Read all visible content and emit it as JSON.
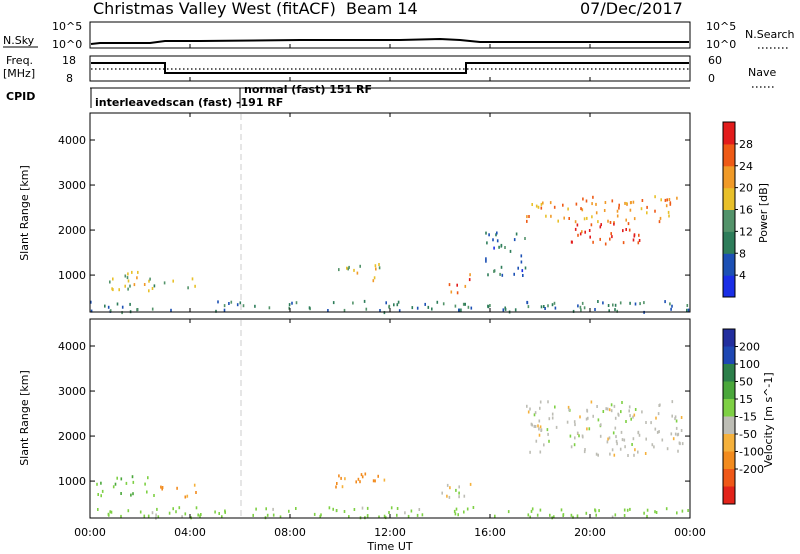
{
  "header": {
    "title": "Christmas Valley West (fitACF)",
    "beam": "Beam 14",
    "date": "07/Dec/2017"
  },
  "panels": {
    "nsky": {
      "label": "N.Sky",
      "left_ticks": [
        "10^5",
        "10^0"
      ],
      "right_label": "N.Search",
      "right_ticks": [
        "10^5",
        "10^0"
      ]
    },
    "freq": {
      "label_line1": "Freq.",
      "label_line2": "[MHz]",
      "left_ticks": [
        "18",
        "8"
      ],
      "right_label": "Nave",
      "right_ticks": [
        "60",
        "0"
      ]
    },
    "cpid": {
      "label": "CPID",
      "mode1": "interleavedscan (fast) -191 RF",
      "mode2": "normal (fast) 151 RF"
    }
  },
  "x_ticks": [
    "00:00",
    "04:00",
    "08:00",
    "12:00",
    "16:00",
    "20:00",
    "00:00"
  ],
  "x_label": "Time UT",
  "colors": {
    "power": [
      "#1a2ee6",
      "#1c50b4",
      "#2e7d5a",
      "#53936a",
      "#e8c02a",
      "#f09a28",
      "#ee5a16",
      "#e21c1c"
    ],
    "velocity": [
      "#e2231a",
      "#ef5818",
      "#f28b1e",
      "#f5b13c",
      "#bdbdb5",
      "#7ed044",
      "#4aa73b",
      "#2c7f4a",
      "#1e47b3",
      "#222e9e"
    ]
  },
  "chart_data": [
    {
      "type": "heatmap",
      "title": "Power",
      "ylabel": "Slant Range [km]",
      "xlabel": "Time UT",
      "y_ticks": [
        "1000",
        "2000",
        "3000",
        "4000"
      ],
      "ylim": [
        180,
        4600
      ],
      "xlim_hours": [
        0,
        24
      ],
      "colorbar": {
        "label": "Power [dB]",
        "ticks": [
          "4",
          "8",
          "12",
          "16",
          "20",
          "24",
          "28"
        ],
        "range": [
          0,
          32
        ]
      },
      "regions": [
        {
          "t0": 0.0,
          "t1": 24.0,
          "r0": 200,
          "r1": 450,
          "level": 10
        },
        {
          "t0": 0.3,
          "t1": 2.2,
          "r0": 700,
          "r1": 1100,
          "level": 18
        },
        {
          "t0": 2.3,
          "t1": 4.2,
          "r0": 650,
          "r1": 950,
          "level": 15
        },
        {
          "t0": 9.8,
          "t1": 11.6,
          "r0": 900,
          "r1": 1300,
          "level": 18
        },
        {
          "t0": 14.3,
          "t1": 15.2,
          "r0": 600,
          "r1": 1100,
          "level": 26
        },
        {
          "t0": 17.4,
          "t1": 23.7,
          "r0": 2200,
          "r1": 2800,
          "level": 22
        },
        {
          "t0": 19.2,
          "t1": 22.0,
          "r0": 1700,
          "r1": 2200,
          "level": 28
        },
        {
          "t0": 15.8,
          "t1": 17.4,
          "r0": 1000,
          "r1": 2000,
          "level": 8
        }
      ]
    },
    {
      "type": "heatmap",
      "title": "Velocity",
      "ylabel": "Slant Range [km]",
      "xlabel": "Time UT",
      "y_ticks": [
        "1000",
        "2000",
        "3000",
        "4000"
      ],
      "ylim": [
        180,
        4600
      ],
      "xlim_hours": [
        0,
        24
      ],
      "colorbar": {
        "label": "Velocity [m s^-1]",
        "ticks": [
          "200",
          "100",
          "50",
          "15",
          "-15",
          "-50",
          "-100",
          "-200"
        ]
      },
      "regions": [
        {
          "t0": 0.0,
          "t1": 24.0,
          "r0": 200,
          "r1": 450,
          "velocity": 30
        },
        {
          "t0": 0.2,
          "t1": 2.6,
          "r0": 700,
          "r1": 1150,
          "velocity": 40
        },
        {
          "t0": 2.6,
          "t1": 4.3,
          "r0": 650,
          "r1": 950,
          "velocity": -60
        },
        {
          "t0": 9.6,
          "t1": 11.8,
          "r0": 900,
          "r1": 1300,
          "velocity": -60
        },
        {
          "t0": 14.0,
          "t1": 15.2,
          "r0": 650,
          "r1": 1100,
          "velocity": 0
        },
        {
          "t0": 17.4,
          "t1": 23.7,
          "r0": 1600,
          "r1": 2800,
          "velocity": 0
        }
      ]
    }
  ]
}
